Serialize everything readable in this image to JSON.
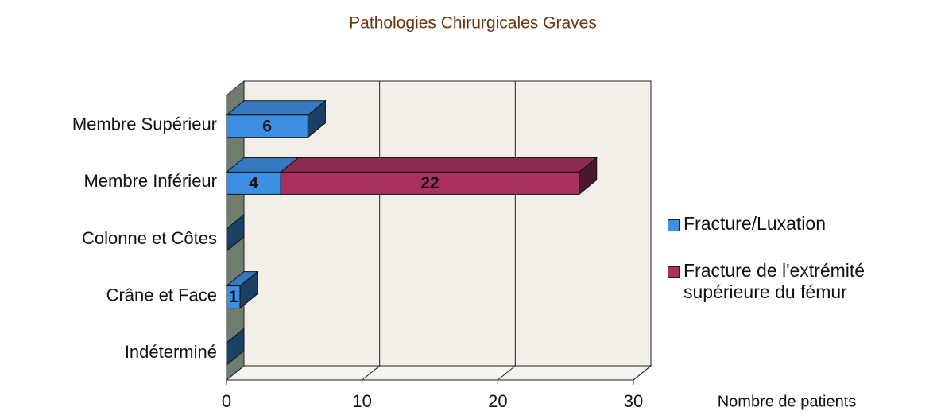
{
  "chart_data": {
    "type": "bar",
    "orientation": "horizontal",
    "stacked": true,
    "three_d": true,
    "title": "Pathologies Chirurgicales Graves",
    "xlabel": "Nombre de patients",
    "categories": [
      "Membre Supérieur",
      "Membre Inférieur",
      "Colonne et Côtes",
      "Crâne et Face",
      "Indéterminé"
    ],
    "series": [
      {
        "name": "Fracture/Luxation",
        "color": "#3d8fe3",
        "values": [
          6,
          4,
          0,
          1,
          0
        ]
      },
      {
        "name": "Fracture de l'extrémité supérieure du fémur",
        "color": "#a8305f",
        "values": [
          0,
          22,
          0,
          0,
          0
        ]
      }
    ],
    "xlim": [
      0,
      30
    ],
    "xticks": [
      0,
      10,
      20,
      30
    ],
    "grid": true,
    "legend": "right"
  }
}
